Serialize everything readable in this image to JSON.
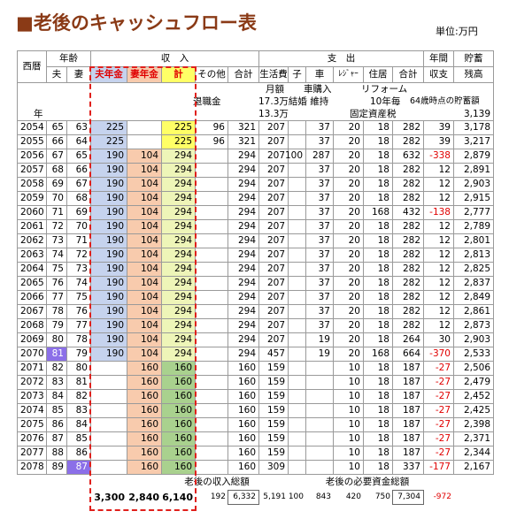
{
  "header": {
    "title": "■老後のキャッシュフロー表",
    "unit": "単位:万円"
  },
  "table": {
    "group_headers": [
      "西暦",
      "年齢",
      "収　入",
      "支　出",
      "年間",
      "貯蓄"
    ],
    "columns": [
      "夫",
      "妻",
      "夫年金",
      "妻年金",
      "計",
      "その他",
      "合計",
      "生活費",
      "子",
      "車",
      "ﾚｼﾞｬｰ",
      "住居",
      "合計",
      "収支",
      "残高"
    ],
    "notes": [
      "月額",
      "車購入",
      "リフォーム",
      "退職金",
      "17.3万結婚 維持",
      "10年毎",
      "64歳時点の貯蓄額",
      "年",
      "13.3万",
      "固定資産税",
      "3,139"
    ],
    "rows": [
      [
        "2054",
        "65",
        "63",
        "225",
        null,
        "225",
        "96",
        "321",
        "207",
        null,
        "37",
        "20",
        "18",
        "282",
        "39",
        "3,178"
      ],
      [
        "2055",
        "66",
        "64",
        "225",
        null,
        "225",
        "96",
        "321",
        "207",
        null,
        "37",
        "20",
        "18",
        "282",
        "39",
        "3,217"
      ],
      [
        "2056",
        "67",
        "65",
        "190",
        "104",
        "294",
        null,
        "294",
        "207",
        "100",
        "287",
        "20",
        "18",
        "632",
        "-338",
        "2,879"
      ],
      [
        "2057",
        "68",
        "66",
        "190",
        "104",
        "294",
        null,
        "294",
        "207",
        null,
        "37",
        "20",
        "18",
        "282",
        "12",
        "2,891"
      ],
      [
        "2058",
        "69",
        "67",
        "190",
        "104",
        "294",
        null,
        "294",
        "207",
        null,
        "37",
        "20",
        "18",
        "282",
        "12",
        "2,903"
      ],
      [
        "2059",
        "70",
        "68",
        "190",
        "104",
        "294",
        null,
        "294",
        "207",
        null,
        "37",
        "20",
        "18",
        "282",
        "12",
        "2,915"
      ],
      [
        "2060",
        "71",
        "69",
        "190",
        "104",
        "294",
        null,
        "294",
        "207",
        null,
        "37",
        "20",
        "168",
        "432",
        "-138",
        "2,777"
      ],
      [
        "2061",
        "72",
        "70",
        "190",
        "104",
        "294",
        null,
        "294",
        "207",
        null,
        "37",
        "20",
        "18",
        "282",
        "12",
        "2,789"
      ],
      [
        "2062",
        "73",
        "71",
        "190",
        "104",
        "294",
        null,
        "294",
        "207",
        null,
        "37",
        "20",
        "18",
        "282",
        "12",
        "2,801"
      ],
      [
        "2063",
        "74",
        "72",
        "190",
        "104",
        "294",
        null,
        "294",
        "207",
        null,
        "37",
        "20",
        "18",
        "282",
        "12",
        "2,813"
      ],
      [
        "2064",
        "75",
        "73",
        "190",
        "104",
        "294",
        null,
        "294",
        "207",
        null,
        "37",
        "20",
        "18",
        "282",
        "12",
        "2,825"
      ],
      [
        "2065",
        "76",
        "74",
        "190",
        "104",
        "294",
        null,
        "294",
        "207",
        null,
        "37",
        "20",
        "18",
        "282",
        "12",
        "2,837"
      ],
      [
        "2066",
        "77",
        "75",
        "190",
        "104",
        "294",
        null,
        "294",
        "207",
        null,
        "37",
        "20",
        "18",
        "282",
        "12",
        "2,849"
      ],
      [
        "2067",
        "78",
        "76",
        "190",
        "104",
        "294",
        null,
        "294",
        "207",
        null,
        "37",
        "20",
        "18",
        "282",
        "12",
        "2,861"
      ],
      [
        "2068",
        "79",
        "77",
        "190",
        "104",
        "294",
        null,
        "294",
        "207",
        null,
        "37",
        "20",
        "18",
        "282",
        "12",
        "2,873"
      ],
      [
        "2069",
        "80",
        "78",
        "190",
        "104",
        "294",
        null,
        "294",
        "207",
        null,
        "19",
        "20",
        "18",
        "264",
        "30",
        "2,903"
      ],
      [
        "2070",
        "81",
        "79",
        "190",
        "104",
        "294",
        null,
        "294",
        "457",
        null,
        "19",
        "20",
        "168",
        "664",
        "-370",
        "2,533"
      ],
      [
        "2071",
        "82",
        "80",
        null,
        "160",
        "160",
        null,
        "160",
        "159",
        null,
        null,
        "10",
        "18",
        "187",
        "-27",
        "2,506"
      ],
      [
        "2072",
        "83",
        "81",
        null,
        "160",
        "160",
        null,
        "160",
        "159",
        null,
        null,
        "10",
        "18",
        "187",
        "-27",
        "2,479"
      ],
      [
        "2073",
        "84",
        "82",
        null,
        "160",
        "160",
        null,
        "160",
        "159",
        null,
        null,
        "10",
        "18",
        "187",
        "-27",
        "2,452"
      ],
      [
        "2074",
        "85",
        "83",
        null,
        "160",
        "160",
        null,
        "160",
        "159",
        null,
        null,
        "10",
        "18",
        "187",
        "-27",
        "2,425"
      ],
      [
        "2075",
        "86",
        "84",
        null,
        "160",
        "160",
        null,
        "160",
        "159",
        null,
        null,
        "10",
        "18",
        "187",
        "-27",
        "2,398"
      ],
      [
        "2076",
        "87",
        "85",
        null,
        "160",
        "160",
        null,
        "160",
        "159",
        null,
        null,
        "10",
        "18",
        "187",
        "-27",
        "2,371"
      ],
      [
        "2077",
        "88",
        "86",
        null,
        "160",
        "160",
        null,
        "160",
        "159",
        null,
        null,
        "10",
        "18",
        "187",
        "-27",
        "2,344"
      ],
      [
        "2078",
        "89",
        "87",
        null,
        "160",
        "160",
        null,
        "160",
        "309",
        null,
        null,
        "10",
        "18",
        "337",
        "-177",
        "2,167"
      ]
    ],
    "footer": {
      "labels": [
        "老後の収入総額",
        "老後の必要資金総額"
      ],
      "values": [
        "3,300",
        "2,840",
        "6,140",
        "192",
        "6,332",
        "5,191",
        "100",
        "843",
        "420",
        "750",
        "7,304",
        "-972"
      ]
    }
  }
}
